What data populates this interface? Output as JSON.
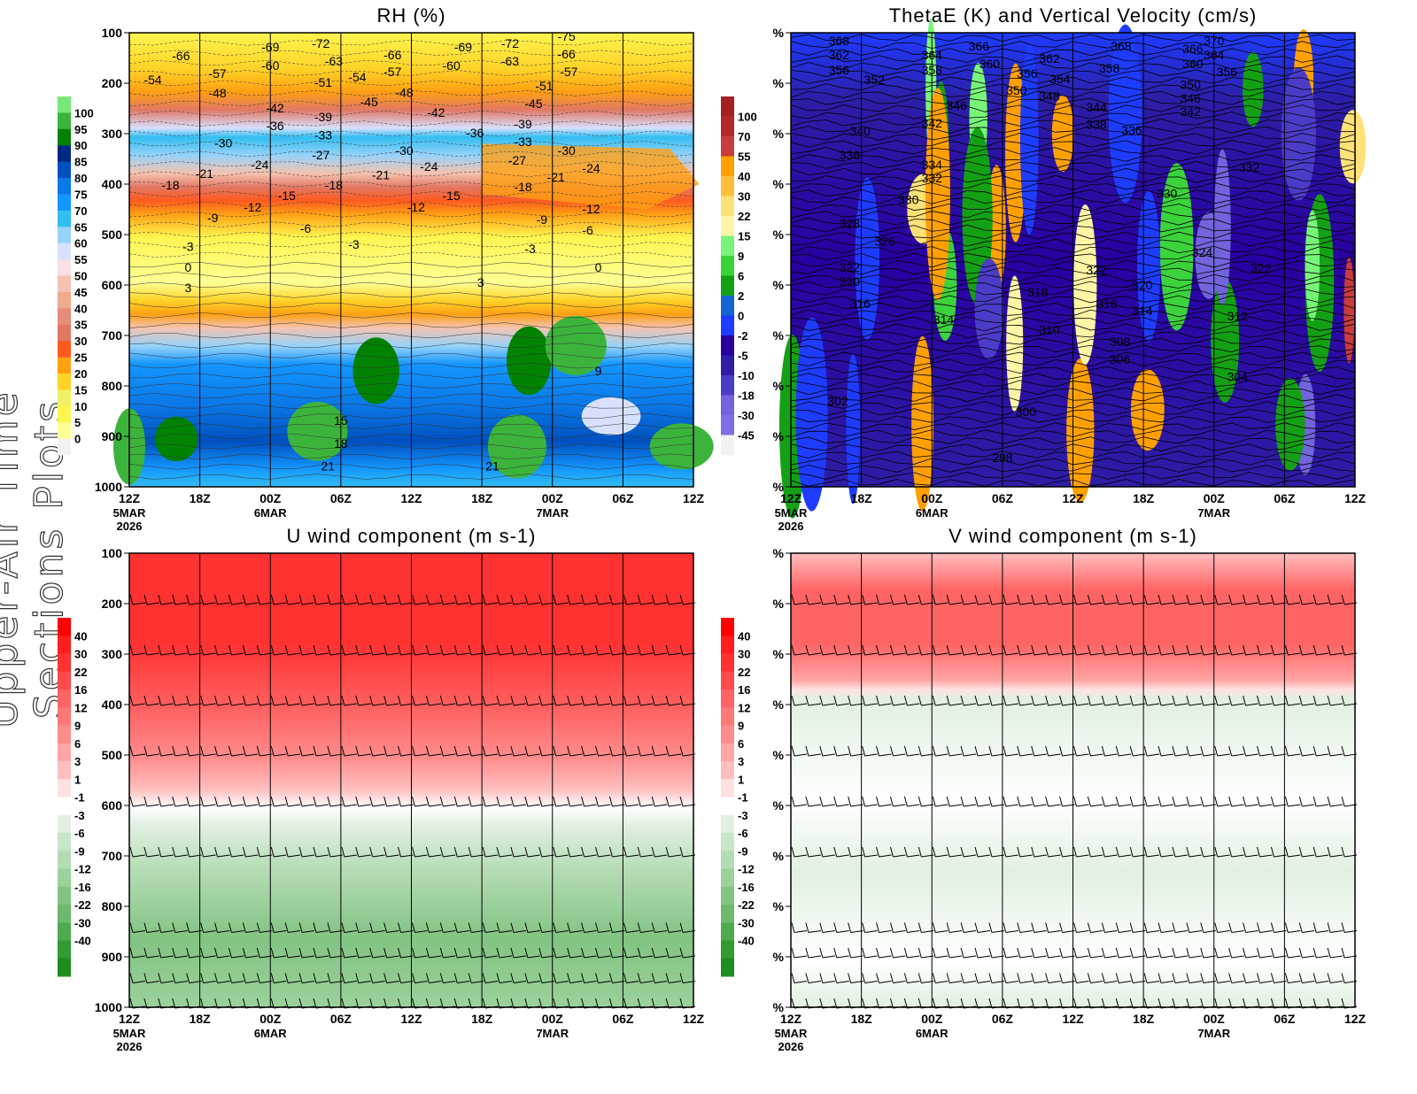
{
  "side_title": "Upper-Air Time Sections Plots",
  "time_axis": {
    "ticks": [
      "12Z",
      "18Z",
      "00Z",
      "06Z",
      "12Z",
      "18Z",
      "00Z",
      "06Z",
      "12Z"
    ],
    "tick_hours": [
      0,
      6,
      12,
      18,
      24,
      30,
      36,
      42,
      48
    ],
    "date_labels": [
      {
        "hour": 0,
        "lines": [
          "5MAR",
          "2026"
        ]
      },
      {
        "hour": 12,
        "lines": [
          "6MAR"
        ]
      },
      {
        "hour": 36,
        "lines": [
          "7MAR"
        ]
      }
    ]
  },
  "chart_data": [
    {
      "id": "rh",
      "type": "heatmap",
      "title": "RH (%)",
      "xlabel": "",
      "ylabel": "",
      "xlim": [
        0,
        48
      ],
      "ylim": [
        1000,
        100
      ],
      "y_ticks": [
        "100",
        "200",
        "300",
        "400",
        "500",
        "600",
        "700",
        "800",
        "900",
        "1000"
      ],
      "colorbar": {
        "labels": [
          "100",
          "95",
          "90",
          "85",
          "80",
          "75",
          "70",
          "65",
          "60",
          "55",
          "50",
          "45",
          "40",
          "35",
          "30",
          "25",
          "20",
          "15",
          "10",
          "5",
          "0"
        ],
        "colors": [
          "#78e678",
          "#3cb43c",
          "#008200",
          "#002882",
          "#0050be",
          "#0a78e6",
          "#1496ff",
          "#32bef0",
          "#96d2fa",
          "#d7e1ff",
          "#fae1e6",
          "#f5c3af",
          "#f0aa8c",
          "#e68c78",
          "#e17864",
          "#ff5a1e",
          "#ffa014",
          "#ffd228",
          "#f0f064",
          "#fff550",
          "#ffff96",
          "#f2f2f2"
        ]
      },
      "contour_labels": [
        [
          4.4,
          146,
          "-66"
        ],
        [
          2.0,
          193,
          "-54"
        ],
        [
          7.5,
          181,
          "-57"
        ],
        [
          7.5,
          219,
          "-48"
        ],
        [
          12.0,
          128,
          "-69"
        ],
        [
          12.0,
          165,
          "-60"
        ],
        [
          16.3,
          121,
          "-72"
        ],
        [
          17.4,
          156,
          "-63"
        ],
        [
          16.5,
          198,
          "-51"
        ],
        [
          19.4,
          188,
          "-54"
        ],
        [
          22.4,
          144,
          "-66"
        ],
        [
          22.4,
          177,
          "-57"
        ],
        [
          23.4,
          218,
          "-48"
        ],
        [
          20.4,
          237,
          "-45"
        ],
        [
          12.4,
          249,
          "-42"
        ],
        [
          12.4,
          284,
          "-36"
        ],
        [
          16.5,
          267,
          "-39"
        ],
        [
          16.5,
          303,
          "-33"
        ],
        [
          8.0,
          318,
          "-30"
        ],
        [
          16.3,
          342,
          "-27"
        ],
        [
          11.1,
          361,
          "-24"
        ],
        [
          6.4,
          379,
          "-21"
        ],
        [
          3.5,
          402,
          "-18"
        ],
        [
          10.5,
          446,
          "-12"
        ],
        [
          13.4,
          423,
          "-15"
        ],
        [
          17.4,
          402,
          "-18"
        ],
        [
          21.4,
          382,
          "-21"
        ],
        [
          7.1,
          467,
          "-9"
        ],
        [
          15.0,
          488,
          "-6"
        ],
        [
          5.0,
          524,
          "-3"
        ],
        [
          5.0,
          565,
          "0"
        ],
        [
          5.0,
          605,
          "3"
        ],
        [
          19.1,
          519,
          "-3"
        ],
        [
          23.4,
          333,
          "-30"
        ],
        [
          25.5,
          365,
          "-24"
        ],
        [
          24.4,
          446,
          "-12"
        ],
        [
          27.4,
          423,
          "-15"
        ],
        [
          26.1,
          258,
          "-42"
        ],
        [
          28.4,
          128,
          "-69"
        ],
        [
          27.4,
          165,
          "-60"
        ],
        [
          32.4,
          121,
          "-72"
        ],
        [
          32.4,
          156,
          "-63"
        ],
        [
          29.4,
          298,
          "-36"
        ],
        [
          33.5,
          281,
          "-39"
        ],
        [
          33.5,
          316,
          "-33"
        ],
        [
          33.0,
          353,
          "-27"
        ],
        [
          33.5,
          405,
          "-18"
        ],
        [
          36.3,
          386,
          "-21"
        ],
        [
          37.2,
          333,
          "-30"
        ],
        [
          39.3,
          368,
          "-24"
        ],
        [
          39.3,
          449,
          "-12"
        ],
        [
          35.1,
          470,
          "-9"
        ],
        [
          39.0,
          491,
          "-6"
        ],
        [
          34.1,
          528,
          "-3"
        ],
        [
          39.9,
          565,
          "0"
        ],
        [
          29.9,
          595,
          "3"
        ],
        [
          34.4,
          240,
          "-45"
        ],
        [
          35.3,
          205,
          "-51"
        ],
        [
          37.4,
          177,
          "-57"
        ],
        [
          37.2,
          142,
          "-66"
        ],
        [
          37.2,
          107,
          "-75"
        ],
        [
          39.9,
          770,
          "9"
        ],
        [
          18.0,
          868,
          "15"
        ],
        [
          18.0,
          914,
          "18"
        ],
        [
          16.9,
          959,
          "21"
        ],
        [
          30.9,
          959,
          "21"
        ]
      ]
    },
    {
      "id": "thetae",
      "type": "heatmap",
      "title": "ThetaE (K) and Vertical Velocity (cm/s)",
      "xlabel": "",
      "ylabel": "",
      "xlim": [
        0,
        48
      ],
      "ylim": [
        1000,
        100
      ],
      "y_ticks": [
        "%",
        "%",
        "%",
        "%",
        "%",
        "%",
        "%",
        "%",
        "%",
        "%"
      ],
      "colorbar": {
        "labels": [
          "100",
          "70",
          "55",
          "40",
          "30",
          "22",
          "15",
          "9",
          "6",
          "2",
          "0",
          "-2",
          "-5",
          "-10",
          "-18",
          "-30",
          "-45"
        ],
        "colors": [
          "#a52020",
          "#b42828",
          "#c83c3c",
          "#ffa000",
          "#ffbe3c",
          "#ffe178",
          "#fff5a5",
          "#78f578",
          "#3cd23c",
          "#14a014",
          "#1464d2",
          "#1e3cff",
          "#2800a0",
          "#2d1ea5",
          "#4b3cc8",
          "#7264dc",
          "#7d6ee6",
          "#f2f2f2"
        ]
      },
      "contour_labels": [
        [
          4.1,
          116,
          "368"
        ],
        [
          4.1,
          144,
          "362"
        ],
        [
          4.1,
          174,
          "356"
        ],
        [
          7.1,
          193,
          "352"
        ],
        [
          12.0,
          144,
          "364"
        ],
        [
          12.0,
          174,
          "358"
        ],
        [
          16.0,
          126,
          "366"
        ],
        [
          16.9,
          161,
          "360"
        ],
        [
          20.1,
          181,
          "356"
        ],
        [
          22.9,
          191,
          "354"
        ],
        [
          22.0,
          151,
          "362"
        ],
        [
          19.2,
          214,
          "350"
        ],
        [
          22.0,
          225,
          "348"
        ],
        [
          14.1,
          244,
          "346"
        ],
        [
          12.0,
          279,
          "342"
        ],
        [
          5.9,
          295,
          "340"
        ],
        [
          5.0,
          342,
          "336"
        ],
        [
          26.0,
          247,
          "344"
        ],
        [
          26.0,
          282,
          "338"
        ],
        [
          29.0,
          293,
          "336"
        ],
        [
          27.1,
          170,
          "358"
        ],
        [
          28.1,
          126,
          "368"
        ],
        [
          34.2,
          132,
          "366"
        ],
        [
          34.2,
          161,
          "360"
        ],
        [
          36.0,
          116,
          "370"
        ],
        [
          36.0,
          144,
          "364"
        ],
        [
          37.1,
          177,
          "356"
        ],
        [
          34.0,
          203,
          "350"
        ],
        [
          34.0,
          230,
          "346"
        ],
        [
          34.0,
          256,
          "342"
        ],
        [
          12.0,
          361,
          "334"
        ],
        [
          12.0,
          388,
          "332"
        ],
        [
          10.0,
          431,
          "330"
        ],
        [
          39.0,
          367,
          "332"
        ],
        [
          32.0,
          418,
          "330"
        ],
        [
          5.0,
          478,
          "328"
        ],
        [
          8.0,
          513,
          "326"
        ],
        [
          35.0,
          535,
          "324"
        ],
        [
          5.0,
          565,
          "322"
        ],
        [
          5.0,
          593,
          "320"
        ],
        [
          26.0,
          570,
          "322"
        ],
        [
          40.0,
          567,
          "322"
        ],
        [
          29.9,
          600,
          "320"
        ],
        [
          5.9,
          637,
          "316"
        ],
        [
          21.0,
          614,
          "318"
        ],
        [
          26.9,
          637,
          "316"
        ],
        [
          29.9,
          651,
          "314"
        ],
        [
          13.0,
          668,
          "314"
        ],
        [
          38.0,
          661,
          "312"
        ],
        [
          22.0,
          689,
          "310"
        ],
        [
          28.0,
          712,
          "308"
        ],
        [
          28.0,
          747,
          "306"
        ],
        [
          38.0,
          782,
          "304"
        ],
        [
          4.0,
          830,
          "302"
        ],
        [
          20.0,
          851,
          "300"
        ],
        [
          18.0,
          942,
          "298"
        ]
      ]
    },
    {
      "id": "u",
      "type": "heatmap",
      "title": "U wind component (m s-1)",
      "xlabel": "",
      "ylabel": "",
      "xlim": [
        0,
        48
      ],
      "ylim": [
        1000,
        100
      ],
      "y_ticks": [
        "100",
        "200",
        "300",
        "400",
        "500",
        "600",
        "700",
        "800",
        "900",
        "1000"
      ],
      "barb_levels": [
        200,
        300,
        400,
        500,
        600,
        700,
        850,
        900,
        950,
        1000
      ],
      "colorbar": {
        "labels": [
          "40",
          "30",
          "22",
          "16",
          "12",
          "9",
          "6",
          "3",
          "1",
          "-1",
          "-3",
          "-6",
          "-9",
          "-12",
          "-16",
          "-22",
          "-30",
          "-40"
        ],
        "colors": [
          "#ff0000",
          "#ff1e1e",
          "#ff3232",
          "#ff4b4b",
          "#ff6464",
          "#ff7878",
          "#ff8c8c",
          "#ffa5a5",
          "#ffbebe",
          "#ffe1e1",
          "#ffffff",
          "#e1f0e1",
          "#c8e6c8",
          "#b4dcb4",
          "#9bd29b",
          "#82c382",
          "#6eb96e",
          "#50aa50",
          "#329b32",
          "#1e8c1e"
        ]
      }
    },
    {
      "id": "v",
      "type": "heatmap",
      "title": "V wind component (m s-1)",
      "xlabel": "",
      "ylabel": "",
      "xlim": [
        0,
        48
      ],
      "ylim": [
        1000,
        100
      ],
      "y_ticks": [
        "%",
        "%",
        "%",
        "%",
        "%",
        "%",
        "%",
        "%",
        "%",
        "%"
      ],
      "barb_levels": [
        200,
        300,
        400,
        500,
        600,
        700,
        850,
        900,
        950,
        1000
      ],
      "colorbar": {
        "labels": [
          "40",
          "30",
          "22",
          "16",
          "12",
          "9",
          "6",
          "3",
          "1",
          "-1",
          "-3",
          "-6",
          "-9",
          "-12",
          "-16",
          "-22",
          "-30",
          "-40"
        ],
        "colors": [
          "#ff0000",
          "#ff1e1e",
          "#ff3232",
          "#ff4b4b",
          "#ff6464",
          "#ff7878",
          "#ff8c8c",
          "#ffa5a5",
          "#ffbebe",
          "#ffe1e1",
          "#ffffff",
          "#e1f0e1",
          "#c8e6c8",
          "#b4dcb4",
          "#9bd29b",
          "#82c382",
          "#6eb96e",
          "#50aa50",
          "#329b32",
          "#1e8c1e"
        ]
      }
    }
  ]
}
